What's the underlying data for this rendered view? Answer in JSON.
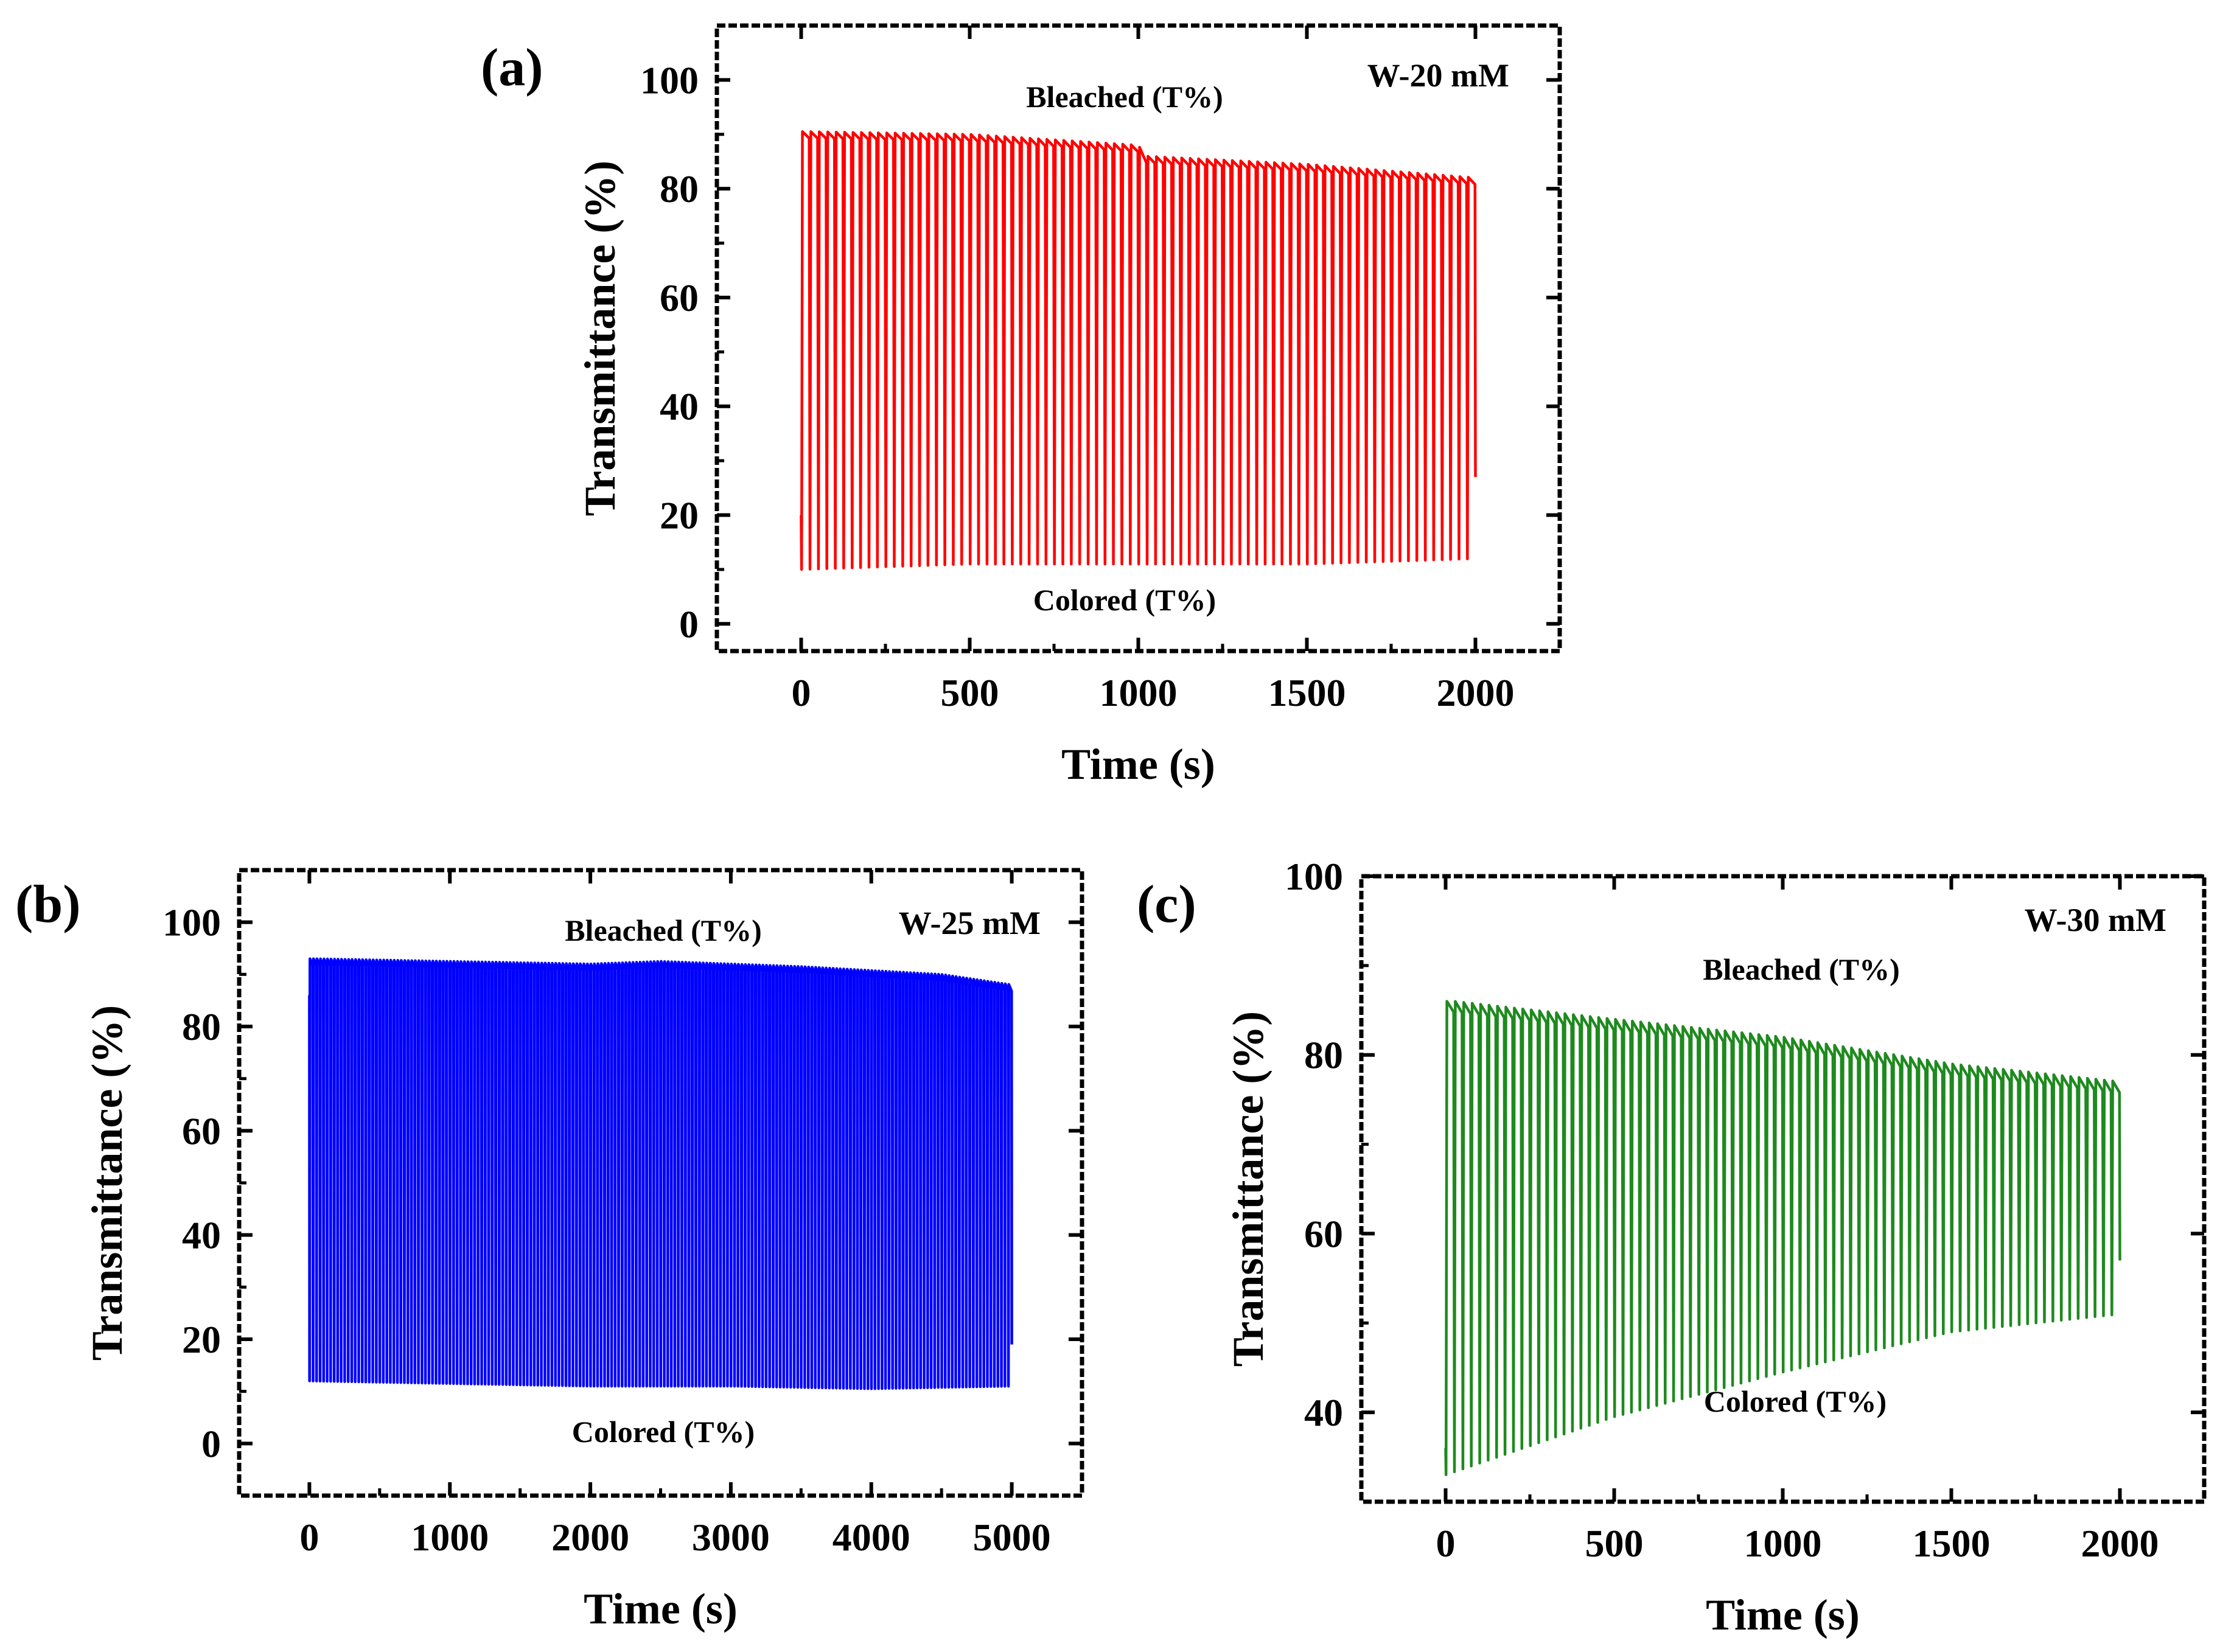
{
  "chart_data": [
    {
      "id": "a",
      "type": "line",
      "panel_label": "(a)",
      "sample_label": "W-20 mM",
      "xlabel": "Time (s)",
      "ylabel": "Transmittance (%)",
      "xlim": [
        -250,
        2250
      ],
      "ylim": [
        -5,
        110
      ],
      "xticks": [
        0,
        500,
        1000,
        1500,
        2000
      ],
      "yticks": [
        0,
        20,
        40,
        60,
        80,
        100
      ],
      "annotations": {
        "top": "Bleached (T%)",
        "bottom": "Colored (T%)"
      },
      "color": "#ff0000",
      "series": [
        {
          "name": "W-20 mM",
          "t_start": 0,
          "t_end": 2000,
          "cycles": 80,
          "first_value": 20,
          "last_value": 27,
          "bleached_points": [
            [
              20,
              90.5
            ],
            [
              500,
              90
            ],
            [
              750,
              89
            ],
            [
              1000,
              88
            ],
            [
              1020,
              86
            ],
            [
              1500,
              84.5
            ],
            [
              2000,
              82
            ]
          ],
          "colored_points": [
            [
              0,
              10
            ],
            [
              500,
              11
            ],
            [
              1000,
              11
            ],
            [
              1500,
              11
            ],
            [
              2000,
              12
            ]
          ]
        }
      ]
    },
    {
      "id": "b",
      "type": "line",
      "panel_label": "(b)",
      "sample_label": "W-25 mM",
      "xlabel": "Time (s)",
      "ylabel": "Transmittance (%)",
      "xlim": [
        -500,
        5500
      ],
      "ylim": [
        -10,
        110
      ],
      "xticks": [
        0,
        1000,
        2000,
        3000,
        4000,
        5000
      ],
      "yticks": [
        0,
        20,
        40,
        60,
        80,
        100
      ],
      "annotations": {
        "top": "Bleached (T%)",
        "bottom": "Colored (T%)"
      },
      "color": "#0000ff",
      "series": [
        {
          "name": "W-25 mM",
          "t_start": 0,
          "t_end": 5000,
          "cycles": 200,
          "first_value": 86,
          "last_value": 19,
          "bleached_points": [
            [
              40,
              93
            ],
            [
              1000,
              92.5
            ],
            [
              2000,
              92
            ],
            [
              2500,
              92.5
            ],
            [
              3500,
              91.5
            ],
            [
              4500,
              90
            ],
            [
              5000,
              88
            ]
          ],
          "colored_points": [
            [
              0,
              12
            ],
            [
              1000,
              11.5
            ],
            [
              2000,
              11
            ],
            [
              3000,
              11
            ],
            [
              4000,
              10.5
            ],
            [
              5000,
              11
            ]
          ]
        }
      ]
    },
    {
      "id": "c",
      "type": "line",
      "panel_label": "(c)",
      "sample_label": "W-30 mM",
      "xlabel": "Time (s)",
      "ylabel": "Transmittance (%)",
      "xlim": [
        -250,
        2250
      ],
      "ylim": [
        30,
        100
      ],
      "xticks": [
        0,
        500,
        1000,
        1500,
        2000
      ],
      "yticks": [
        40,
        60,
        80,
        100
      ],
      "annotations": {
        "top": "Bleached (T%)",
        "bottom": "Colored (T%)"
      },
      "color": "#1e8a1e",
      "series": [
        {
          "name": "W-30 mM",
          "t_start": 0,
          "t_end": 2000,
          "cycles": 80,
          "first_value": 36,
          "last_value": 57,
          "bleached_points": [
            [
              25,
              86
            ],
            [
              500,
              84
            ],
            [
              1000,
              82
            ],
            [
              1500,
              79
            ],
            [
              2000,
              77
            ]
          ],
          "colored_points": [
            [
              0,
              33
            ],
            [
              500,
              39.5
            ],
            [
              1000,
              44.5
            ],
            [
              1500,
              49
            ],
            [
              2000,
              51
            ]
          ]
        }
      ]
    }
  ]
}
